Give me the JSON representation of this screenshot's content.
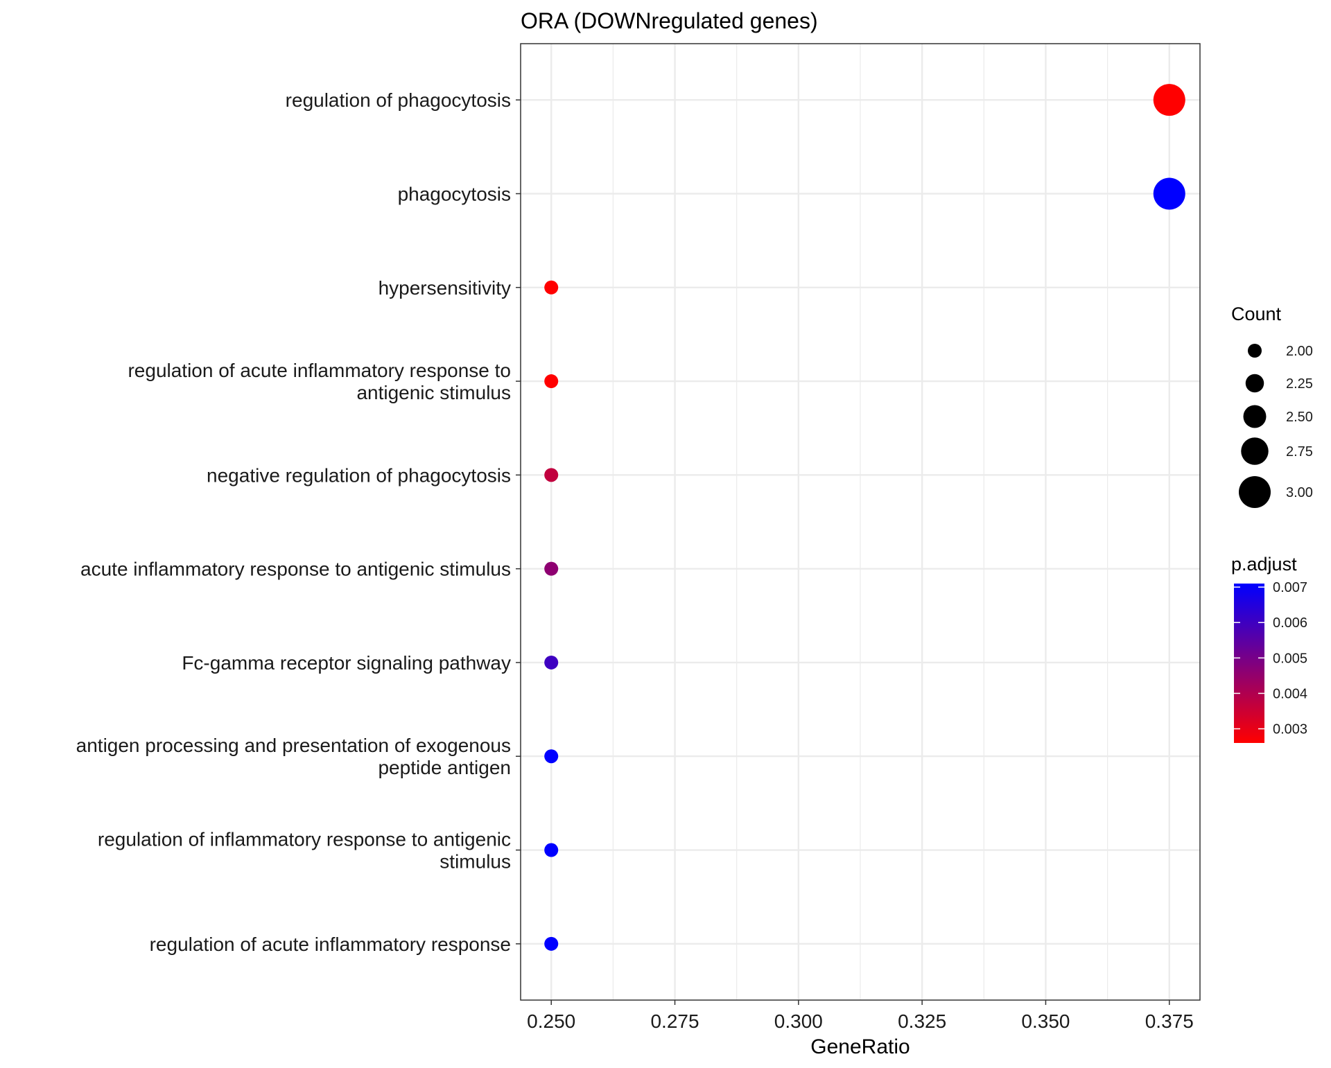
{
  "chart_data": {
    "type": "scatter",
    "title": "ORA (DOWNregulated genes)",
    "xlabel": "GeneRatio",
    "ylabel": "",
    "xlim": [
      0.2438,
      0.3812
    ],
    "x_ticks": [
      "0.250",
      "0.275",
      "0.300",
      "0.325",
      "0.350",
      "0.375"
    ],
    "grid": true,
    "legend_position": "right",
    "size_legend": {
      "title": "Count",
      "values": [
        2.0,
        2.25,
        2.5,
        2.75,
        3.0
      ],
      "labels": [
        "2.00",
        "2.25",
        "2.50",
        "2.75",
        "3.00"
      ]
    },
    "color_legend": {
      "title": "p.adjust",
      "min": 0.0026,
      "max": 0.0071,
      "low_color": "#ff0000",
      "high_color": "#0000ff",
      "tick_values": [
        0.003,
        0.004,
        0.005,
        0.006,
        0.007
      ],
      "tick_labels": [
        "0.003",
        "0.004",
        "0.005",
        "0.006",
        "0.007"
      ]
    },
    "points": [
      {
        "term": [
          "regulation of phagocytosis"
        ],
        "x": 0.375,
        "count": 3,
        "p_adjust": 0.0026
      },
      {
        "term": [
          "phagocytosis"
        ],
        "x": 0.375,
        "count": 3,
        "p_adjust": 0.0071
      },
      {
        "term": [
          "hypersensitivity"
        ],
        "x": 0.25,
        "count": 2,
        "p_adjust": 0.0026
      },
      {
        "term": [
          "regulation of acute inflammatory response to",
          "antigenic stimulus"
        ],
        "x": 0.25,
        "count": 2,
        "p_adjust": 0.0026
      },
      {
        "term": [
          "negative regulation of phagocytosis"
        ],
        "x": 0.25,
        "count": 2,
        "p_adjust": 0.0037
      },
      {
        "term": [
          "acute inflammatory response to antigenic stimulus"
        ],
        "x": 0.25,
        "count": 2,
        "p_adjust": 0.0046
      },
      {
        "term": [
          "Fc-gamma receptor signaling pathway"
        ],
        "x": 0.25,
        "count": 2,
        "p_adjust": 0.006
      },
      {
        "term": [
          "antigen processing and presentation of exogenous",
          "peptide antigen"
        ],
        "x": 0.25,
        "count": 2,
        "p_adjust": 0.0071
      },
      {
        "term": [
          "regulation of inflammatory response to antigenic",
          "stimulus"
        ],
        "x": 0.25,
        "count": 2,
        "p_adjust": 0.0071
      },
      {
        "term": [
          "regulation of acute inflammatory response"
        ],
        "x": 0.25,
        "count": 2,
        "p_adjust": 0.0071
      }
    ]
  }
}
